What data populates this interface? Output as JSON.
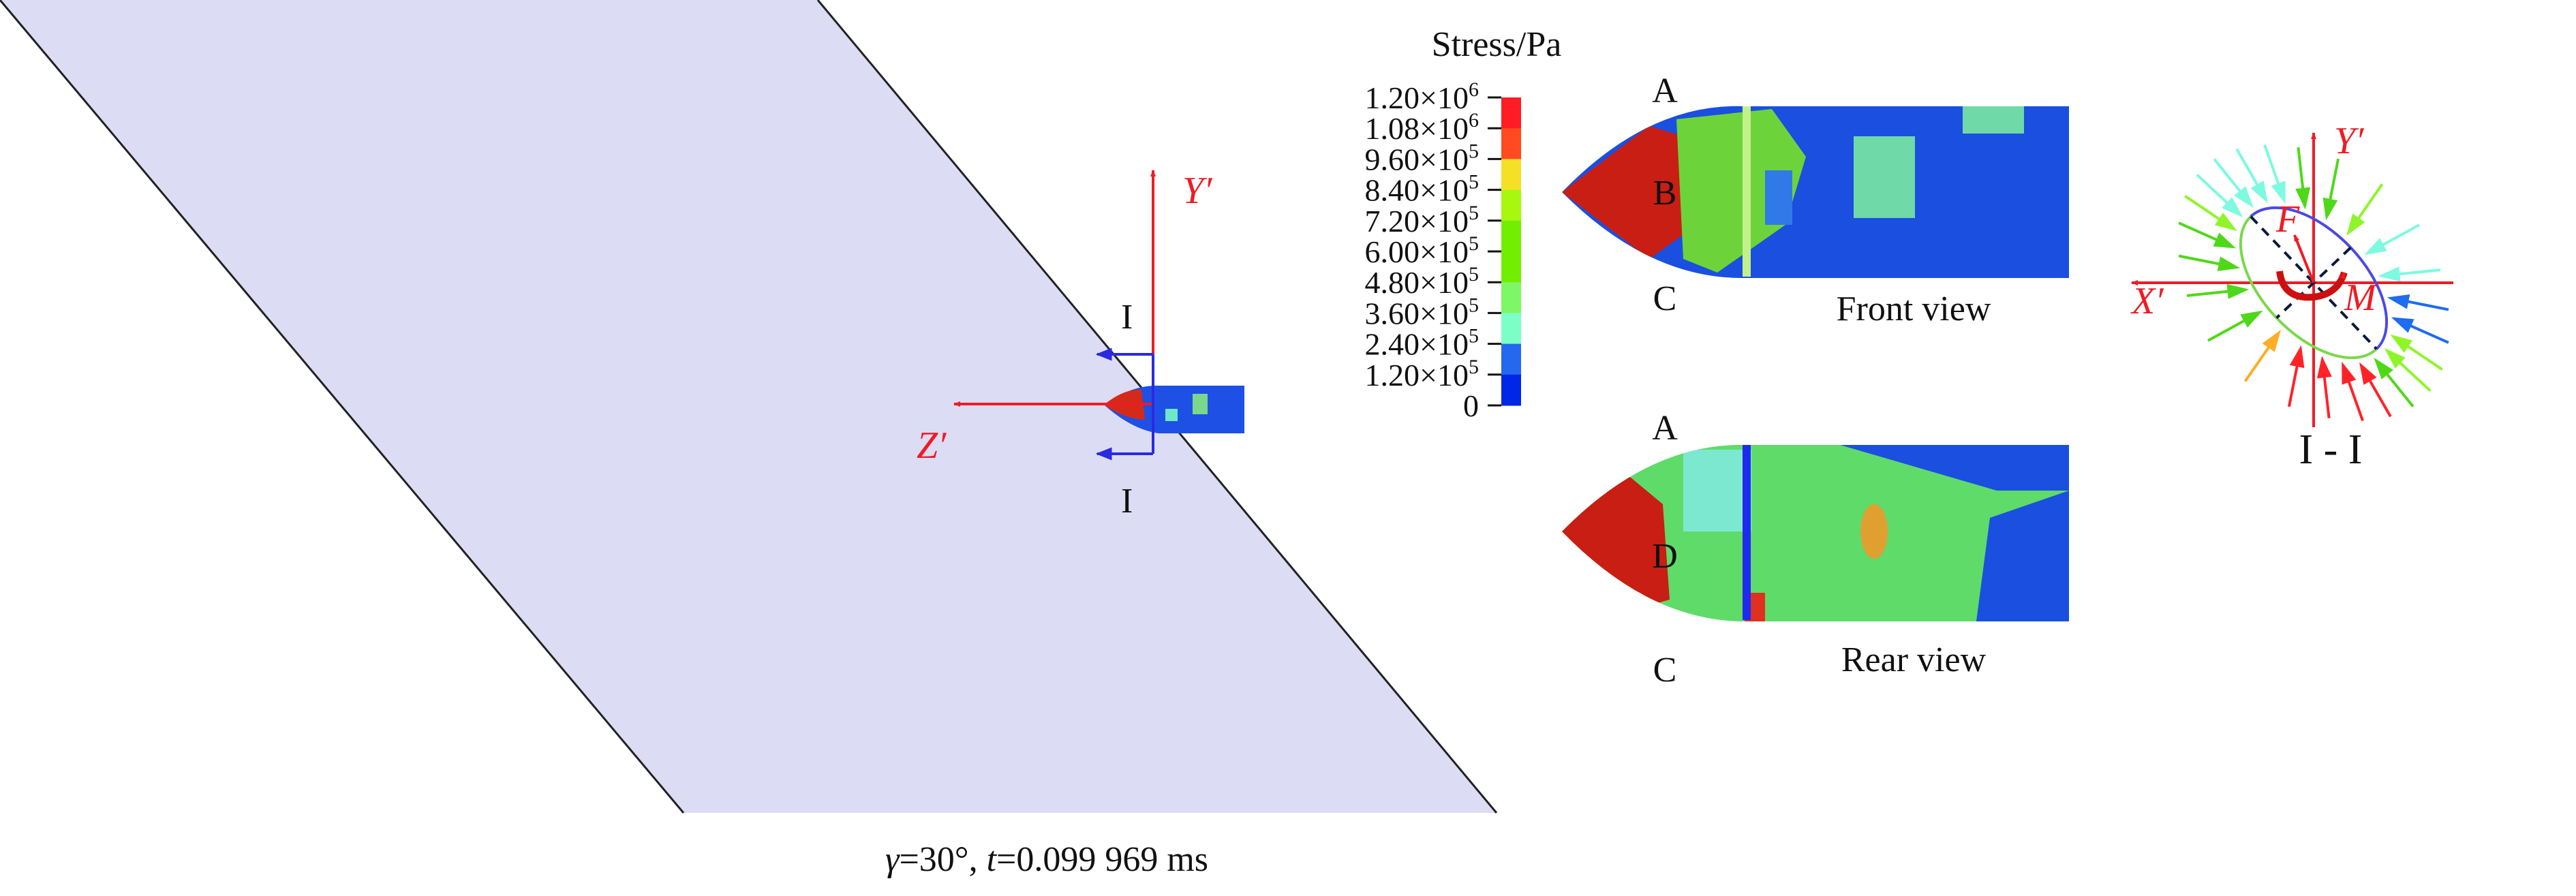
{
  "caption": {
    "gamma": "γ",
    "gamma_value": "=30°, ",
    "t": "t",
    "t_value": "=0.099 969 ms"
  },
  "scene": {
    "y_axis": "Y′",
    "z_axis": "Z′",
    "section_top": "I",
    "section_bottom": "I"
  },
  "legend": {
    "title": "Stress/Pa",
    "labels": [
      {
        "m": "1.20×10",
        "e": "6"
      },
      {
        "m": "1.08×10",
        "e": "6"
      },
      {
        "m": "9.60×10",
        "e": "5"
      },
      {
        "m": "8.40×10",
        "e": "5"
      },
      {
        "m": "7.20×10",
        "e": "5"
      },
      {
        "m": "6.00×10",
        "e": "5"
      },
      {
        "m": "4.80×10",
        "e": "5"
      },
      {
        "m": "3.60×10",
        "e": "5"
      },
      {
        "m": "2.40×10",
        "e": "5"
      },
      {
        "m": "1.20×10",
        "e": "5"
      },
      {
        "m": "0",
        "e": ""
      }
    ],
    "colors": [
      "#ff1c24",
      "#ff4a22",
      "#f5e025",
      "#a8f70e",
      "#72ee00",
      "#72ee00",
      "#7ef767",
      "#7dffc8",
      "#2468f0",
      "#0026e6"
    ]
  },
  "front_view": {
    "title": "Front view",
    "point_a": "A",
    "point_b": "B",
    "point_c": "C"
  },
  "rear_view": {
    "title": "Rear view",
    "point_a": "A",
    "point_d": "D",
    "point_c": "C"
  },
  "section": {
    "title": "I - I",
    "x_axis": "X′",
    "y_axis": "Y′",
    "force": "F",
    "moment": "M",
    "arrow_colors": [
      "#4fd81a",
      "#8ff52a",
      "#7dfadf",
      "#7dfadf",
      "#1e6cf0",
      "#1e6cf0",
      "#8ff52a",
      "#8ff52a",
      "#4fd81a",
      "#ff2328",
      "#ff2328",
      "#ff2328",
      "#ff2328",
      "#ffad25",
      "#4fd81a",
      "#4fd81a",
      "#4fd81a",
      "#4fd81a",
      "#8ff52a",
      "#7dfadf",
      "#7dfadf",
      "#7dfadf",
      "#7dfadf",
      "#4fd81a"
    ]
  }
}
